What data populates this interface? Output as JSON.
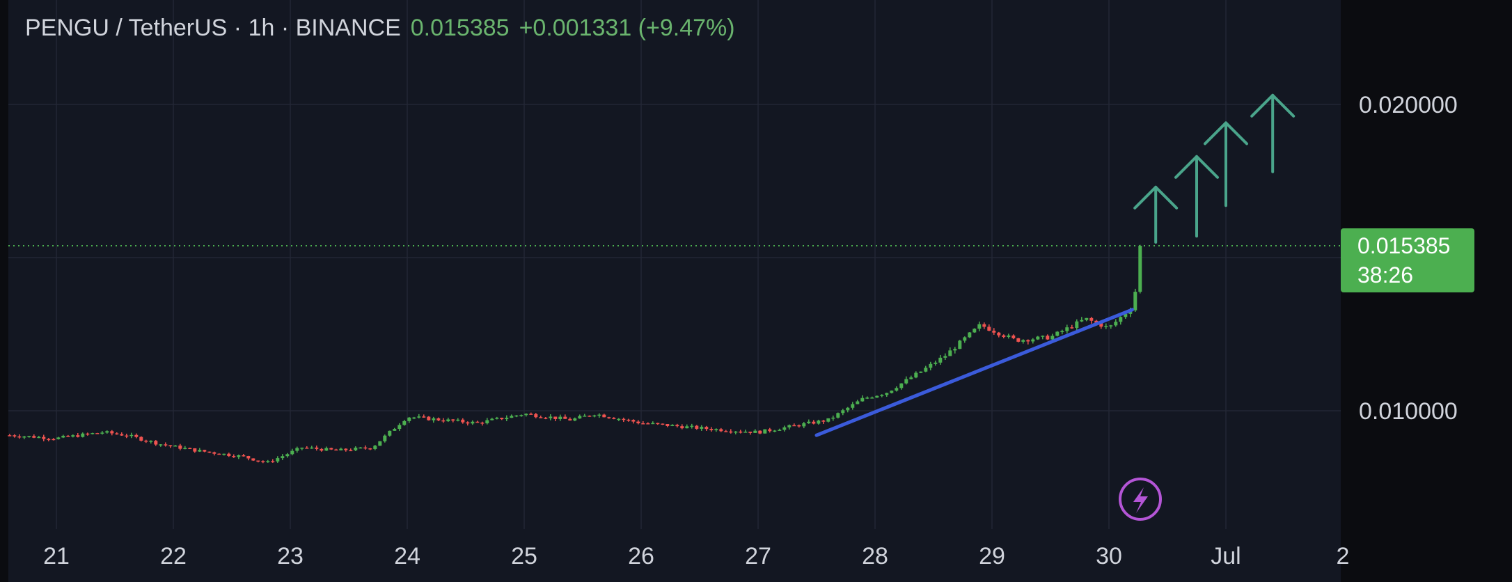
{
  "header": {
    "symbol": "PENGU / TetherUS · 1h · BINANCE",
    "last_price": "0.015385",
    "change": "+0.001331 (+9.47%)"
  },
  "price_badge": {
    "price": "0.015385",
    "countdown": "38:26"
  },
  "colors": {
    "background": "#131722",
    "up": "#4caf50",
    "down": "#ef5350",
    "trendline": "#3b5bdb",
    "arrows": "#4aa58b",
    "badge": "#4caf50"
  },
  "chart_data": {
    "type": "candlestick",
    "y_axis": {
      "ticks": [
        {
          "value": 0.02,
          "label": "0.020000"
        },
        {
          "value": 0.01,
          "label": "0.010000"
        }
      ]
    },
    "x_axis": {
      "ticks": [
        {
          "day": 21,
          "label": "21"
        },
        {
          "day": 22,
          "label": "22"
        },
        {
          "day": 23,
          "label": "23"
        },
        {
          "day": 24,
          "label": "24"
        },
        {
          "day": 25,
          "label": "25"
        },
        {
          "day": 26,
          "label": "26"
        },
        {
          "day": 27,
          "label": "27"
        },
        {
          "day": 28,
          "label": "28"
        },
        {
          "day": 29,
          "label": "29"
        },
        {
          "day": 30,
          "label": "30"
        },
        {
          "day": 31,
          "label": "Jul"
        },
        {
          "day": 32,
          "label": "2"
        }
      ]
    },
    "price_path": [
      [
        20.6,
        0.0092
      ],
      [
        21.0,
        0.0091
      ],
      [
        21.4,
        0.0093
      ],
      [
        21.6,
        0.0092
      ],
      [
        21.9,
        0.0089
      ],
      [
        22.2,
        0.0087
      ],
      [
        22.6,
        0.0085
      ],
      [
        22.8,
        0.0083
      ],
      [
        23.1,
        0.0088
      ],
      [
        23.4,
        0.0087
      ],
      [
        23.7,
        0.0088
      ],
      [
        24.0,
        0.0098
      ],
      [
        24.3,
        0.0097
      ],
      [
        24.6,
        0.0096
      ],
      [
        25.0,
        0.0099
      ],
      [
        25.4,
        0.0097
      ],
      [
        25.6,
        0.0099
      ],
      [
        26.0,
        0.0096
      ],
      [
        26.3,
        0.0095
      ],
      [
        26.6,
        0.0094
      ],
      [
        27.0,
        0.0093
      ],
      [
        27.3,
        0.0095
      ],
      [
        27.6,
        0.0097
      ],
      [
        27.9,
        0.0104
      ],
      [
        28.1,
        0.0106
      ],
      [
        28.4,
        0.0113
      ],
      [
        28.6,
        0.0118
      ],
      [
        28.9,
        0.0128
      ],
      [
        29.2,
        0.0123
      ],
      [
        29.5,
        0.0124
      ],
      [
        29.8,
        0.013
      ],
      [
        30.0,
        0.0127
      ],
      [
        30.2,
        0.0134
      ],
      [
        30.3,
        0.0154
      ]
    ],
    "last_price": 0.015385,
    "trendline": {
      "from": [
        27.5,
        0.0092
      ],
      "to": [
        30.2,
        0.0133
      ]
    },
    "arrows": [
      {
        "day": 30.4,
        "from": 0.0155,
        "to": 0.0173
      },
      {
        "day": 30.75,
        "from": 0.0157,
        "to": 0.0183
      },
      {
        "day": 31.0,
        "from": 0.0167,
        "to": 0.0194
      },
      {
        "day": 31.4,
        "from": 0.0178,
        "to": 0.0203
      }
    ]
  }
}
